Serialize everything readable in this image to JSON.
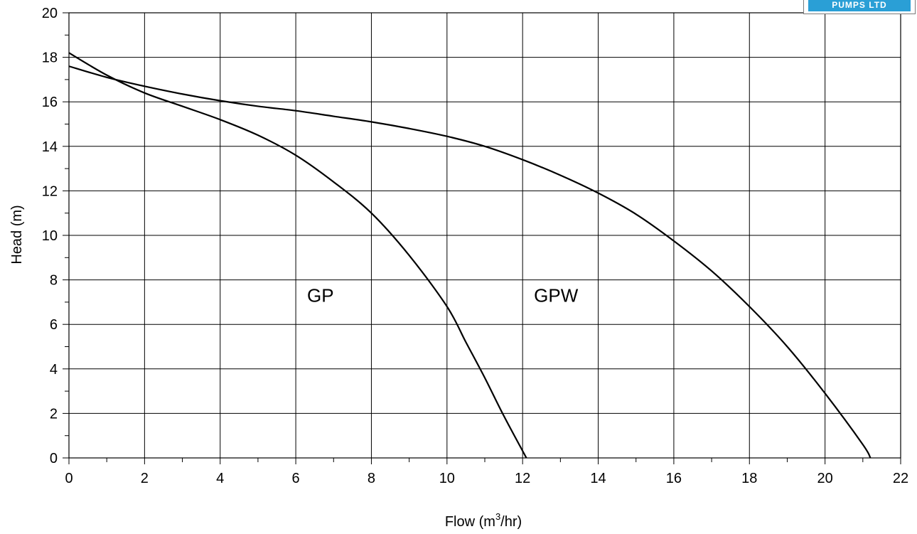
{
  "logo": {
    "text": "PUMPS LTD",
    "color": "#2a9fd6"
  },
  "chart_data": {
    "type": "line",
    "title": "",
    "xlabel": "Flow (m",
    "xlabel_sup": "3",
    "xlabel_end": "/hr)",
    "ylabel": "Head (m)",
    "xlim": [
      0,
      22
    ],
    "ylim": [
      0,
      20
    ],
    "x_ticks": [
      0,
      2,
      4,
      6,
      8,
      10,
      12,
      14,
      16,
      18,
      20,
      22
    ],
    "y_ticks": [
      0,
      2,
      4,
      6,
      8,
      10,
      12,
      14,
      16,
      18,
      20
    ],
    "grid": true,
    "series": [
      {
        "name": "GP",
        "label_at": [
          6.3,
          7.3
        ],
        "x": [
          0,
          1,
          2,
          3,
          4,
          5,
          6,
          7,
          8,
          9,
          10,
          10.5,
          11,
          11.5,
          12.1
        ],
        "y": [
          18.2,
          17.2,
          16.4,
          15.8,
          15.2,
          14.5,
          13.6,
          12.4,
          11.0,
          9.1,
          6.8,
          5.2,
          3.6,
          1.9,
          0
        ]
      },
      {
        "name": "GPW",
        "label_at": [
          12.3,
          7.3
        ],
        "x": [
          0,
          1,
          2,
          3,
          4,
          5,
          6,
          7,
          8,
          9,
          10,
          11,
          12,
          13,
          14,
          15,
          16,
          17,
          18,
          19,
          20,
          21,
          21.2
        ],
        "y": [
          17.6,
          17.1,
          16.7,
          16.35,
          16.05,
          15.8,
          15.6,
          15.35,
          15.1,
          14.8,
          14.45,
          14.0,
          13.4,
          12.7,
          11.9,
          10.95,
          9.75,
          8.4,
          6.8,
          5.0,
          2.9,
          0.6,
          0
        ]
      }
    ]
  }
}
